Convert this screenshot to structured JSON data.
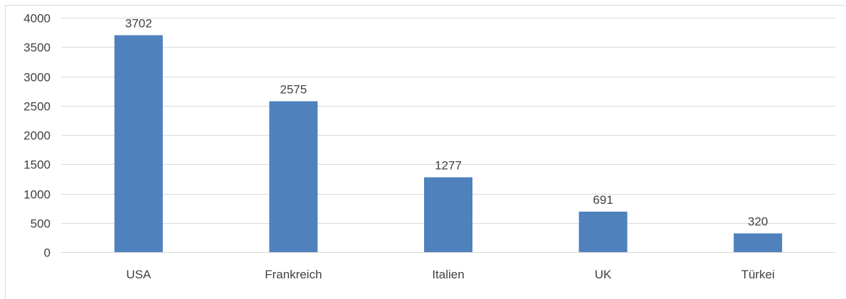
{
  "chart_data": {
    "type": "bar",
    "title": "",
    "xlabel": "",
    "ylabel": "",
    "categories": [
      "USA",
      "Frankreich",
      "Italien",
      "UK",
      "Türkei"
    ],
    "values": [
      3702,
      2575,
      1277,
      691,
      320
    ],
    "data_labels": [
      "3702",
      "2575",
      "1277",
      "691",
      "320"
    ],
    "ylim": [
      0,
      4000
    ],
    "yticks": [
      0,
      500,
      1000,
      1500,
      2000,
      2500,
      3000,
      3500,
      4000
    ],
    "ytick_labels": [
      "0",
      "500",
      "1000",
      "1500",
      "2000",
      "2500",
      "3000",
      "3500",
      "4000"
    ],
    "grid": true,
    "legend": "none",
    "bar_color": "#4f81bd"
  }
}
